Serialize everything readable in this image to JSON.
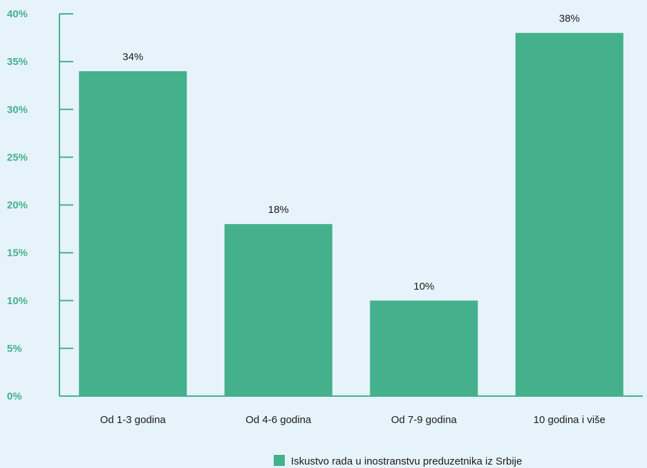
{
  "colors": {
    "bar": "#45b08c",
    "axis": "#45b08c",
    "tick_label": "#45b08c",
    "background": "#e6f3fb"
  },
  "chart_data": {
    "type": "bar",
    "categories": [
      "Od 1-3 godina",
      "Od 4-6 godina",
      "Od 7-9 godina",
      "10 godina i više"
    ],
    "series": [
      {
        "name": "Iskustvo rada u inostranstvu preduzetnika iz Srbije",
        "values": [
          34,
          18,
          10,
          38
        ],
        "data_labels": [
          "34%",
          "18%",
          "10%",
          "38%"
        ]
      }
    ],
    "ylim": [
      0,
      40
    ],
    "yticks": [
      0,
      5,
      10,
      15,
      20,
      25,
      30,
      35,
      40
    ],
    "ytick_labels": [
      "0%",
      "5%",
      "10%",
      "15%",
      "20%",
      "25%",
      "30%",
      "35%",
      "40%"
    ],
    "grid": false,
    "legend_position": "bottom-right"
  }
}
